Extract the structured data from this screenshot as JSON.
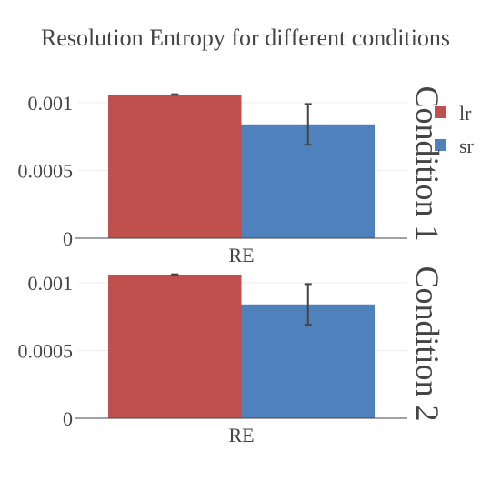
{
  "chart_data": {
    "type": "bar",
    "title": "Resolution Entropy for different conditions",
    "categories": [
      "RE"
    ],
    "series": [
      {
        "name": "lr",
        "color": "#c0504d"
      },
      {
        "name": "sr",
        "color": "#4f81bd"
      }
    ],
    "ylim": [
      0,
      0.0011
    ],
    "yticks": [
      {
        "value": 0,
        "label": "0"
      },
      {
        "value": 0.0005,
        "label": "0.0005"
      },
      {
        "value": 0.001,
        "label": "0.001"
      }
    ],
    "grid": true,
    "legend_position": "top-right",
    "facets": [
      {
        "label": "Condition 1",
        "values": {
          "lr": [
            0.00106
          ],
          "sr": [
            0.00084
          ]
        },
        "errors": {
          "lr": [
            2e-06
          ],
          "sr": [
            0.00015
          ]
        }
      },
      {
        "label": "Condition 2",
        "values": {
          "lr": [
            0.00106
          ],
          "sr": [
            0.00084
          ]
        },
        "errors": {
          "lr": [
            2e-06
          ],
          "sr": [
            0.00015
          ]
        }
      }
    ]
  }
}
